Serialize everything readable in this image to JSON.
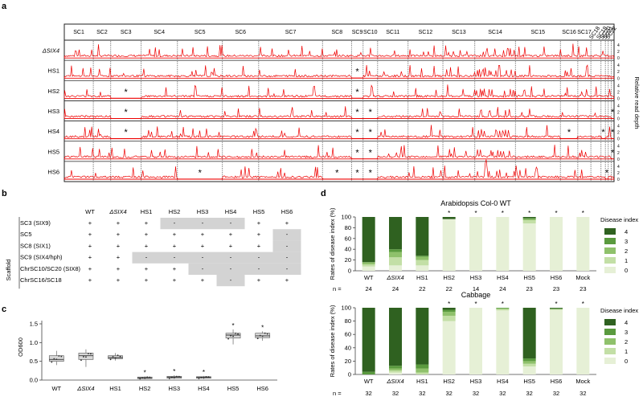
{
  "figure": {
    "panel_letters": [
      "a",
      "b",
      "c",
      "d"
    ]
  },
  "panel_a": {
    "scaffolds": [
      "SC1",
      "SC2",
      "SC3",
      "SC4",
      "SC5",
      "SC6",
      "SC7",
      "SC8",
      "SC9",
      "SC10",
      "SC11",
      "SC12",
      "SC13",
      "SC14",
      "SC15",
      "SC16",
      "SC17",
      "SC18",
      "SC19",
      "SC20",
      "SC21",
      "SC22"
    ],
    "strains": [
      "ΔSIX4",
      "HS1",
      "HS2",
      "HS3",
      "HS4",
      "HS5",
      "HS6"
    ],
    "y_axis_label": "Relative read depth",
    "y_ticks": [
      "4",
      "2",
      "0"
    ],
    "star": "*",
    "stars": {
      "HS1": [
        "SC9"
      ],
      "HS2": [
        "SC3",
        "SC9"
      ],
      "HS3": [
        "SC3",
        "SC9",
        "SC10",
        "SC22"
      ],
      "HS4": [
        "SC3",
        "SC9",
        "SC10",
        "SC16",
        "SC19",
        "SC22"
      ],
      "HS5": [
        "SC9",
        "SC10",
        "SC22"
      ],
      "HS6": [
        "SC5",
        "SC8",
        "SC9",
        "SC10",
        "SC20"
      ]
    }
  },
  "panel_b": {
    "row_group_label": "Scaffold",
    "columns": [
      "WT",
      "ΔSIX4",
      "HS1",
      "HS2",
      "HS3",
      "HS4",
      "HS5",
      "HS6"
    ],
    "rows": [
      {
        "label": "SC3 (SIX9)",
        "values": [
          "+",
          "+",
          "+",
          "-",
          "-",
          "-",
          "+",
          "+"
        ]
      },
      {
        "label": "SC5",
        "values": [
          "+",
          "+",
          "+",
          "+",
          "+",
          "+",
          "+",
          "-"
        ]
      },
      {
        "label": "SC8 (SIX1)",
        "values": [
          "+",
          "+",
          "+",
          "+",
          "+",
          "+",
          "+",
          "-"
        ]
      },
      {
        "label": "SC9 (SIX4/hph)",
        "values": [
          "+",
          "+",
          "-",
          "-",
          "-",
          "-",
          "-",
          "-"
        ]
      },
      {
        "label": "ChrSC10/SC20 (SIX8)",
        "values": [
          "+",
          "+",
          "+",
          "+",
          "-",
          "-",
          "-",
          "-"
        ]
      },
      {
        "label": "ChrSC16/SC18",
        "values": [
          "+",
          "+",
          "+",
          "+",
          "+",
          "-",
          "+",
          "+"
        ]
      }
    ]
  },
  "panel_c": {
    "chart_data": {
      "type": "box",
      "categories": [
        "WT",
        "ΔSIX4",
        "HS1",
        "HS2",
        "HS3",
        "HS4",
        "HS5",
        "HS6"
      ],
      "medians": [
        0.55,
        0.65,
        0.6,
        0.06,
        0.08,
        0.07,
        1.2,
        1.18
      ],
      "q1": [
        0.5,
        0.55,
        0.57,
        0.04,
        0.05,
        0.05,
        1.12,
        1.13
      ],
      "q3": [
        0.65,
        0.72,
        0.65,
        0.08,
        0.1,
        0.09,
        1.25,
        1.25
      ],
      "whisker_low": [
        0.4,
        0.35,
        0.52,
        0.02,
        0.03,
        0.03,
        0.95,
        1.05
      ],
      "whisker_high": [
        0.78,
        0.82,
        0.72,
        0.1,
        0.13,
        0.11,
        1.35,
        1.3
      ],
      "significant": [
        false,
        false,
        false,
        true,
        true,
        true,
        true,
        true
      ],
      "ylabel": "OD600",
      "ylim": [
        0,
        1.5
      ],
      "yticks": [
        "0.0",
        "0.5",
        "1.0",
        "1.5"
      ]
    }
  },
  "panel_d": {
    "chart_data": [
      {
        "type": "bar",
        "stacked": true,
        "title": "Arabidopsis Col-0 WT",
        "ylabel": "Rates of disease index (%)",
        "ylim": [
          0,
          100
        ],
        "yticks": [
          "0",
          "20",
          "40",
          "60",
          "80",
          "100"
        ],
        "categories": [
          "WT",
          "ΔSIX4",
          "HS1",
          "HS2",
          "HS3",
          "HS4",
          "HS5",
          "HS6",
          "Mock"
        ],
        "n": [
          "24",
          "24",
          "22",
          "22",
          "14",
          "24",
          "23",
          "23",
          "23"
        ],
        "significant": [
          false,
          false,
          false,
          true,
          true,
          true,
          true,
          true,
          true
        ],
        "series": [
          {
            "name": "0",
            "color": "#e6f0d6",
            "values": [
              8,
              10,
              10,
              96,
              100,
              100,
              88,
              100,
              100
            ]
          },
          {
            "name": "1",
            "color": "#c3dfa6",
            "values": [
              4,
              15,
              10,
              0,
              0,
              0,
              6,
              0,
              0
            ]
          },
          {
            "name": "2",
            "color": "#8fc16b",
            "values": [
              4,
              10,
              6,
              0,
              0,
              0,
              2,
              0,
              0
            ]
          },
          {
            "name": "3",
            "color": "#5a9a3e",
            "values": [
              0,
              5,
              2,
              0,
              0,
              0,
              2,
              0,
              0
            ]
          },
          {
            "name": "4",
            "color": "#2f6120",
            "values": [
              84,
              60,
              72,
              4,
              0,
              0,
              2,
              0,
              0
            ]
          }
        ]
      },
      {
        "type": "bar",
        "stacked": true,
        "title": "Cabbage",
        "ylabel": "Rates of disease index (%)",
        "ylim": [
          0,
          100
        ],
        "yticks": [
          "0",
          "20",
          "40",
          "60",
          "80",
          "100"
        ],
        "categories": [
          "WT",
          "ΔSIX4",
          "HS1",
          "HS2",
          "HS3",
          "HS4",
          "HS5",
          "HS6",
          "Mock"
        ],
        "n": [
          "32",
          "32",
          "32",
          "32",
          "32",
          "32",
          "32",
          "32",
          "32"
        ],
        "significant": [
          false,
          false,
          false,
          true,
          true,
          true,
          false,
          true,
          true
        ],
        "series": [
          {
            "name": "0",
            "color": "#e6f0d6",
            "values": [
              0,
              3,
              0,
              80,
              100,
              96,
              12,
              97,
              100
            ]
          },
          {
            "name": "1",
            "color": "#c3dfa6",
            "values": [
              0,
              3,
              3,
              8,
              0,
              2,
              4,
              1,
              0
            ]
          },
          {
            "name": "2",
            "color": "#8fc16b",
            "values": [
              0,
              3,
              6,
              6,
              0,
              1,
              4,
              0,
              0
            ]
          },
          {
            "name": "3",
            "color": "#5a9a3e",
            "values": [
              4,
              4,
              6,
              3,
              0,
              1,
              4,
              1,
              0
            ]
          },
          {
            "name": "4",
            "color": "#2f6120",
            "values": [
              96,
              87,
              85,
              3,
              0,
              0,
              76,
              1,
              0
            ]
          }
        ]
      }
    ],
    "legend_title": "Disease index",
    "legend_order": [
      "4",
      "3",
      "2",
      "1",
      "0"
    ],
    "n_label": "n ="
  }
}
